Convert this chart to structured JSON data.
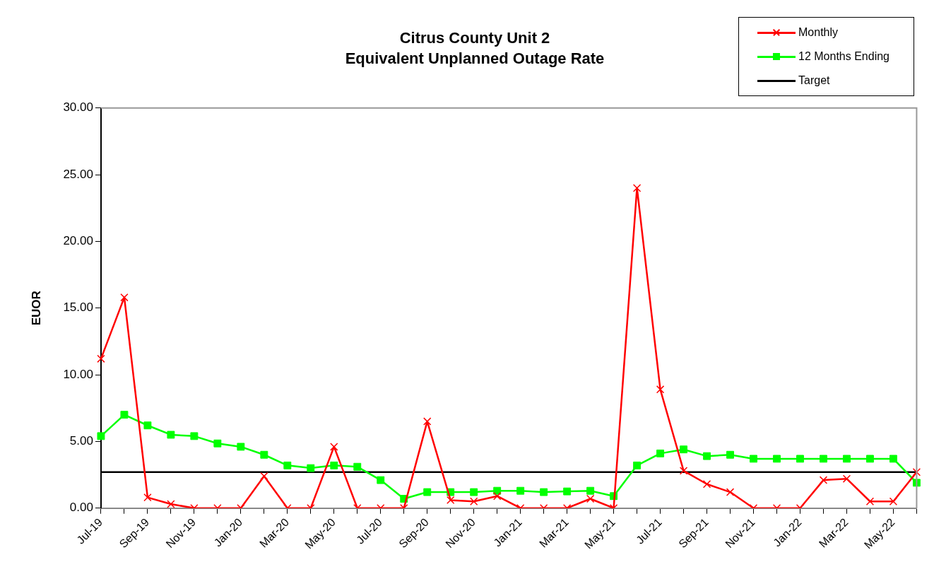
{
  "chart_data": {
    "type": "line",
    "title": "Citrus County Unit 2",
    "subtitle": "Equivalent Unplanned Outage Rate",
    "ylabel": "EUOR",
    "categories": [
      "Jul-19",
      null,
      "Sep-19",
      null,
      "Nov-19",
      null,
      "Jan-20",
      null,
      "Mar-20",
      null,
      "May-20",
      null,
      "Jul-20",
      null,
      "Sep-20",
      null,
      "Nov-20",
      null,
      "Jan-21",
      null,
      "Mar-21",
      null,
      "May-21",
      null,
      "Jul-21",
      null,
      "Sep-21",
      null,
      "Nov-21",
      null,
      "Jan-22",
      null,
      "Mar-22",
      null,
      "May-22",
      null
    ],
    "series": [
      {
        "name": "Monthly",
        "color": "#ff0000",
        "marker": "cross",
        "values": [
          11.2,
          15.8,
          0.8,
          0.3,
          0,
          0,
          0,
          2.4,
          0,
          0,
          4.6,
          0,
          0,
          0,
          6.5,
          0.6,
          0.5,
          0.9,
          0,
          0,
          0,
          0.7,
          0,
          24.0,
          8.9,
          2.8,
          1.8,
          1.2,
          0,
          0,
          0,
          2.1,
          2.2,
          0.5,
          0.5,
          2.7
        ]
      },
      {
        "name": "12 Months Ending",
        "color": "#00ff00",
        "marker": "square",
        "values": [
          5.4,
          7.0,
          6.2,
          5.5,
          5.4,
          4.85,
          4.6,
          4.0,
          3.2,
          3.0,
          3.2,
          3.1,
          2.1,
          0.7,
          1.2,
          1.2,
          1.2,
          1.3,
          1.3,
          1.2,
          1.25,
          1.3,
          0.9,
          3.2,
          4.1,
          4.4,
          3.9,
          4.0,
          3.7,
          3.7,
          3.7,
          3.7,
          3.7,
          3.7,
          3.7,
          1.9
        ]
      },
      {
        "name": "Target",
        "color": "#000000",
        "marker": "none",
        "values": [
          2.7,
          2.7,
          2.7,
          2.7,
          2.7,
          2.7,
          2.7,
          2.7,
          2.7,
          2.7,
          2.7,
          2.7,
          2.7,
          2.7,
          2.7,
          2.7,
          2.7,
          2.7,
          2.7,
          2.7,
          2.7,
          2.7,
          2.7,
          2.7,
          2.7,
          2.7,
          2.7,
          2.7,
          2.7,
          2.7,
          2.7,
          2.7,
          2.7,
          2.7,
          2.7,
          2.7
        ]
      }
    ],
    "ylim": [
      0,
      30
    ],
    "yticks": [
      {
        "value": 0,
        "label": "0.00"
      },
      {
        "value": 5,
        "label": "5.00"
      },
      {
        "value": 10,
        "label": "10.00"
      },
      {
        "value": 15,
        "label": "15.00"
      },
      {
        "value": 20,
        "label": "20.00"
      },
      {
        "value": 25,
        "label": "25.00"
      },
      {
        "value": 30,
        "label": "30.00"
      }
    ],
    "grid": false,
    "legend": "top right",
    "line_style": "solid"
  }
}
